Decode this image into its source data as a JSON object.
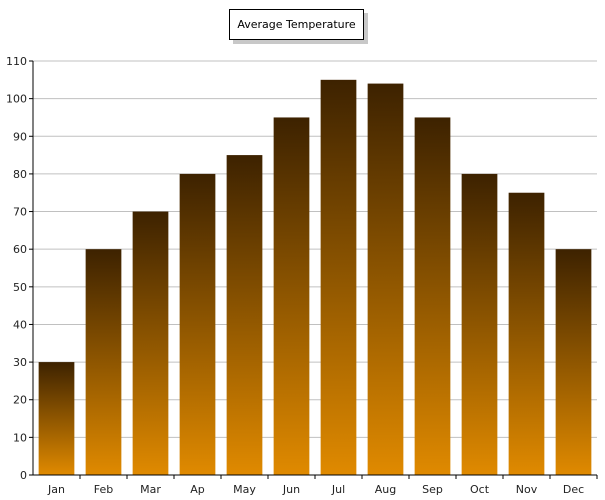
{
  "legend": {
    "label": "Average Temperature"
  },
  "chart_data": {
    "type": "bar",
    "categories": [
      "Jan",
      "Feb",
      "Mar",
      "Ap",
      "May",
      "Jun",
      "Jul",
      "Aug",
      "Sep",
      "Oct",
      "Nov",
      "Dec"
    ],
    "series": [
      {
        "name": "Average Temperature",
        "values": [
          30,
          60,
          70,
          80,
          85,
          95,
          105,
          104,
          95,
          80,
          75,
          60
        ]
      }
    ],
    "title": "",
    "xlabel": "",
    "ylabel": "",
    "ylim": [
      0,
      110
    ],
    "yticks": [
      0,
      10,
      20,
      30,
      40,
      50,
      60,
      70,
      80,
      90,
      100,
      110
    ],
    "grid": true,
    "legend_position": "top-center",
    "colors": {
      "bar_top": "#3d2200",
      "bar_bottom": "#e08a00",
      "grid": "#c0c0c0",
      "axis": "#000000"
    }
  }
}
